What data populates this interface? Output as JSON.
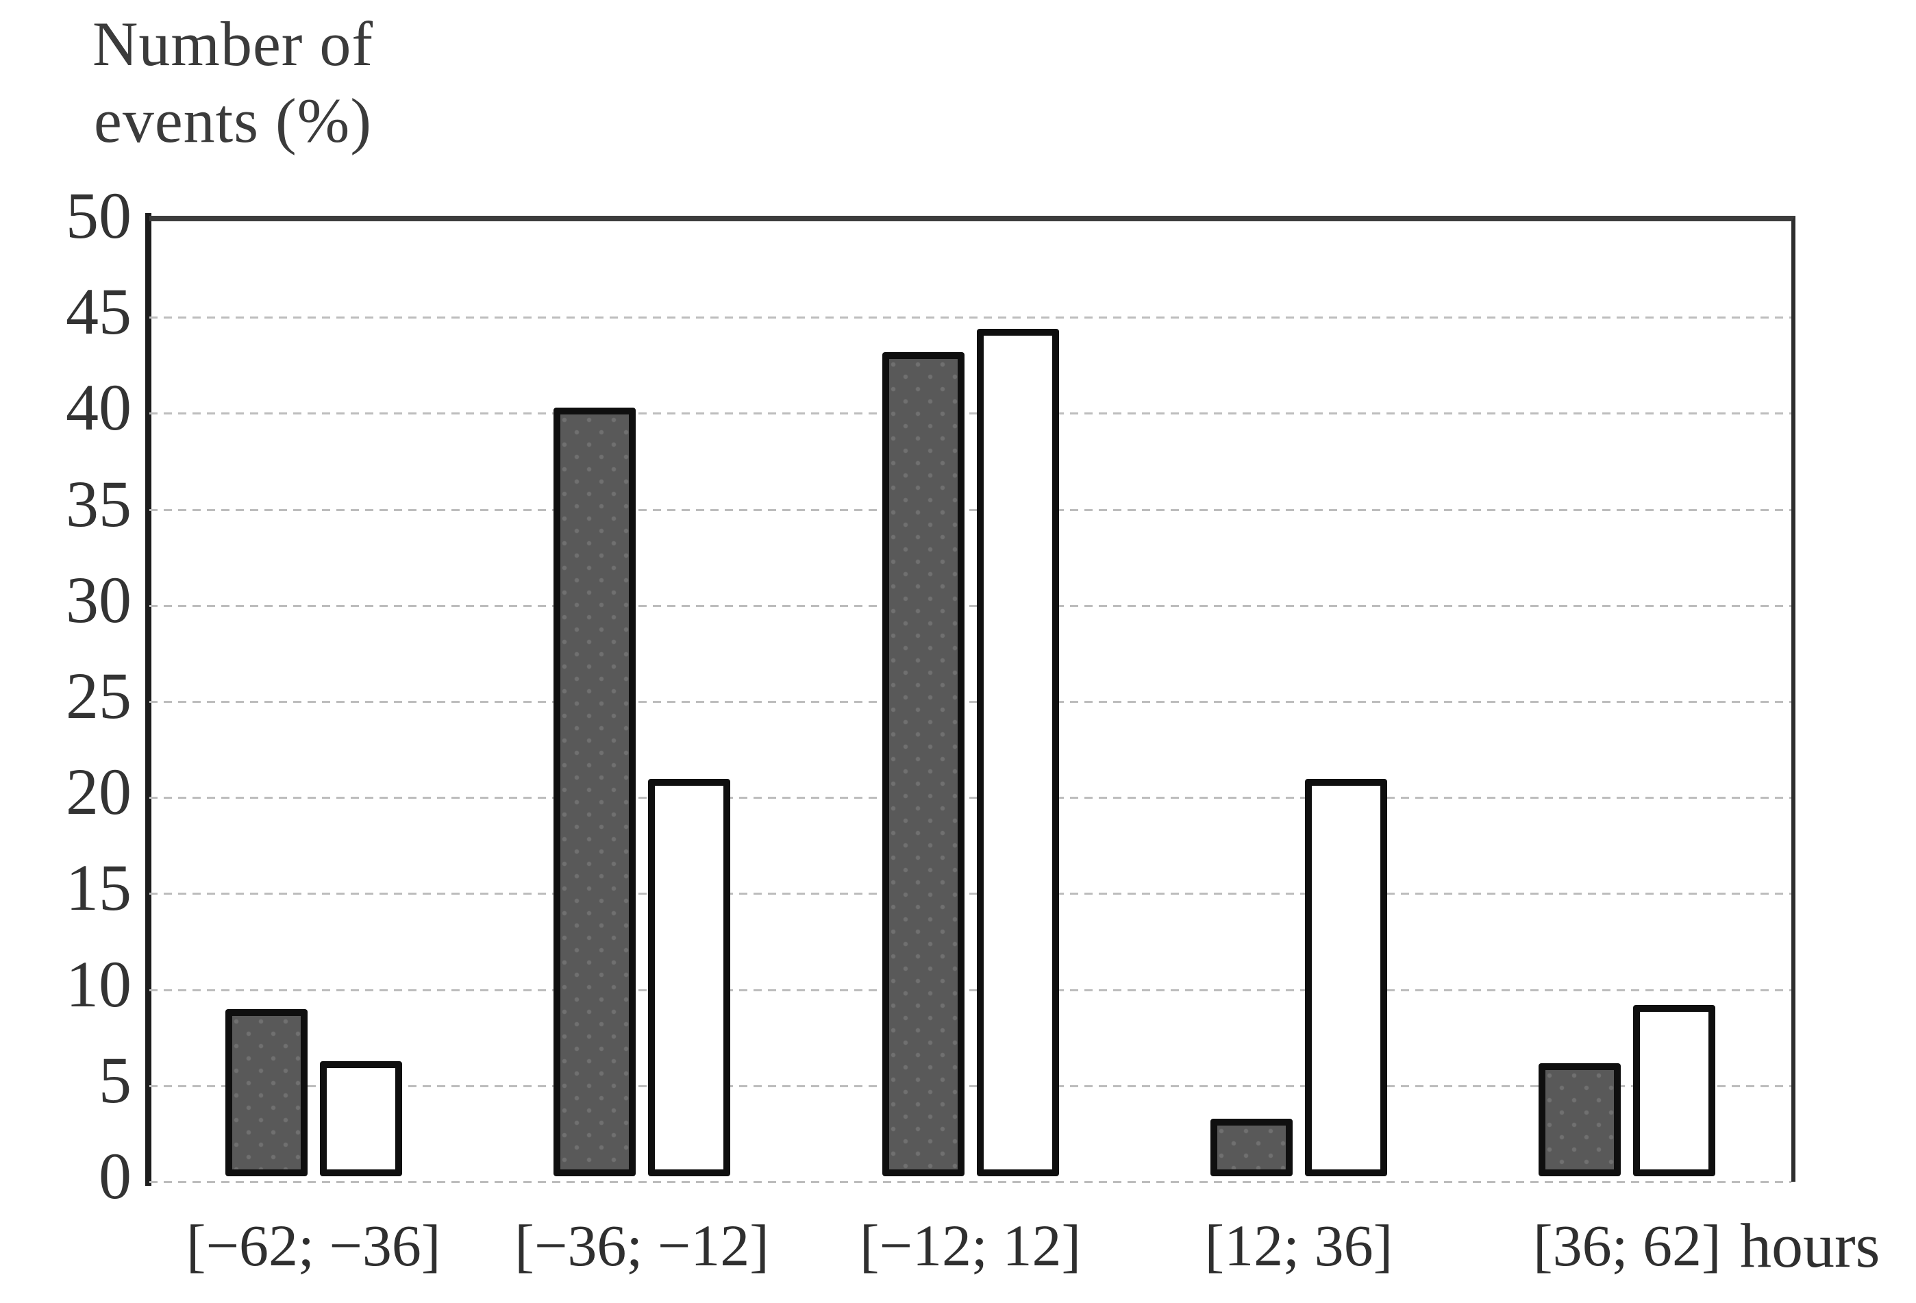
{
  "title": {
    "line1": "Number of",
    "line2": "events (%)"
  },
  "x_unit_label": "hours",
  "colors": {
    "dark_bar_fill": "#595959",
    "dark_bar_dot": "#707070",
    "bar_border": "#0f0f0f",
    "white_bar_fill": "#ffffff",
    "gridline": "#bdbdbd",
    "axis_line": "#1c1c1c",
    "text": "#2f2f2f"
  },
  "chart_data": {
    "type": "bar",
    "title": "Number of events (%)",
    "xlabel": "hours",
    "ylabel": "Number of events (%)",
    "categories": [
      "[−62; −36]",
      "[−36; −12]",
      "[−12; 12]",
      "[12; 36]",
      "[36; 62]"
    ],
    "series": [
      {
        "name": "dark-dotted-bars",
        "style": "gray fill with dot pattern, black outline",
        "values": [
          8.7,
          40.0,
          42.9,
          3.0,
          5.9
        ]
      },
      {
        "name": "white-bars",
        "style": "white fill, black outline",
        "values": [
          6.0,
          20.7,
          44.1,
          20.7,
          8.9
        ]
      }
    ],
    "ylim": [
      0,
      50
    ],
    "ytick_step": 5,
    "yticks": [
      50,
      45,
      40,
      35,
      30,
      25,
      20,
      15,
      10,
      5,
      0
    ],
    "grid": "horizontal dashed gridlines every 5",
    "legend": "none"
  }
}
